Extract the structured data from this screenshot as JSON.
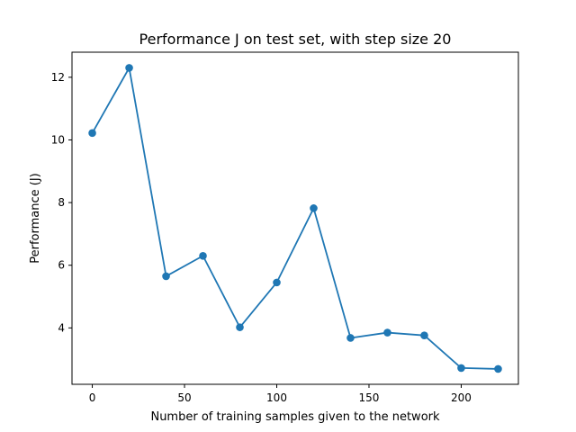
{
  "chart_data": {
    "type": "line",
    "title": "Performance J on test set, with step size 20",
    "xlabel": "Number of training samples given to the network",
    "ylabel": "Performance (J)",
    "xlim": [
      -11,
      231
    ],
    "ylim": [
      2.2,
      12.8
    ],
    "xticks": [
      0,
      50,
      100,
      150,
      200
    ],
    "yticks": [
      4,
      6,
      8,
      10,
      12
    ],
    "grid": false,
    "series": [
      {
        "x": [
          0,
          20,
          40,
          60,
          80,
          100,
          120,
          140,
          160,
          180,
          200,
          220
        ],
        "y": [
          10.22,
          12.3,
          5.65,
          6.3,
          4.02,
          5.45,
          7.82,
          3.68,
          3.85,
          3.76,
          2.72,
          2.69
        ],
        "color": "#1f77b4",
        "marker": "circle"
      }
    ]
  }
}
